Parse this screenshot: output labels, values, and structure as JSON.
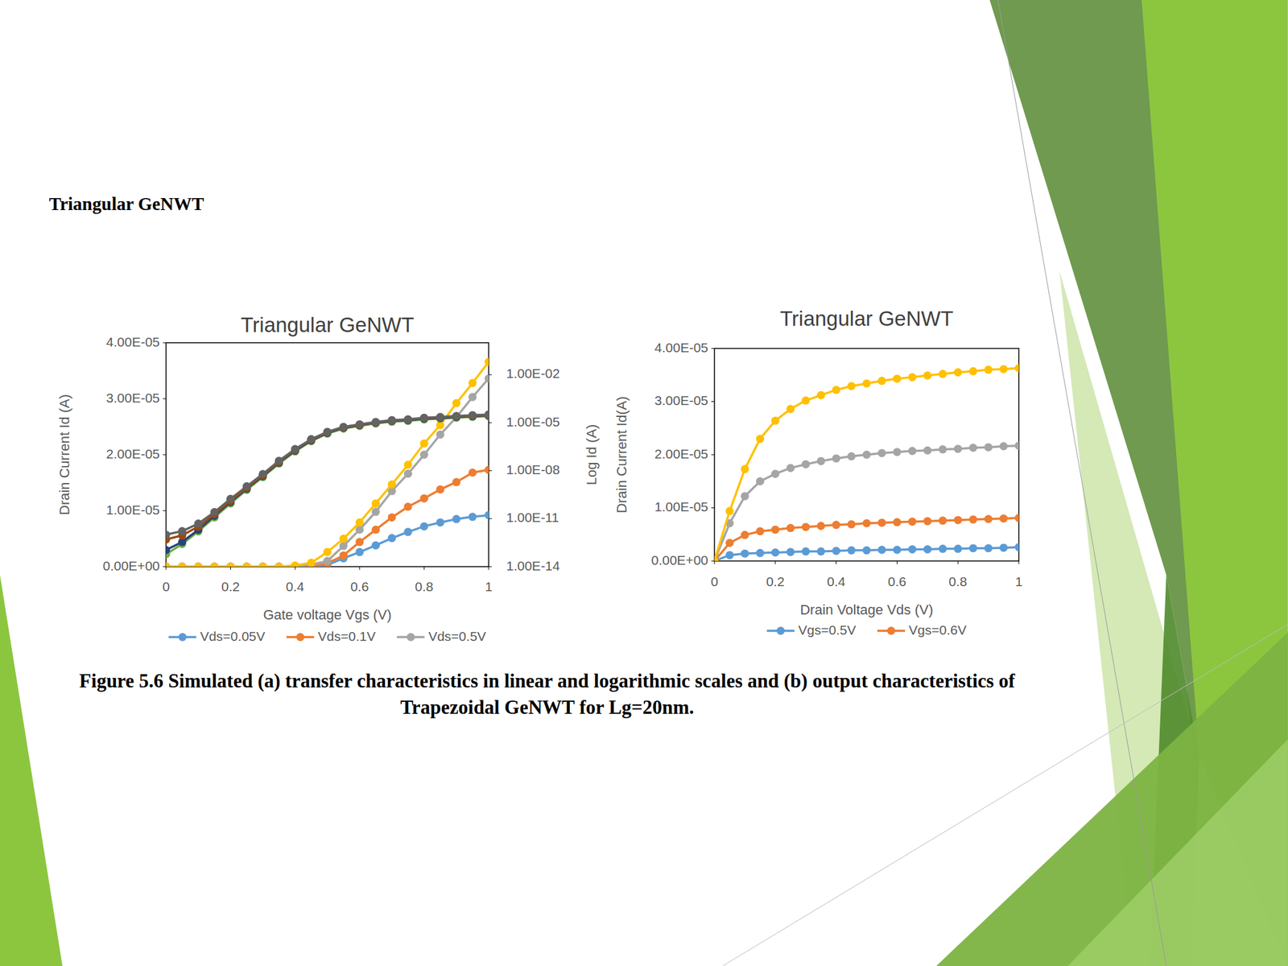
{
  "heading": "Triangular GeNWT",
  "caption": "Figure 5.6 Simulated (a) transfer characteristics in linear and logarithmic scales and (b) output characteristics of Trapezoidal GeNWT for Lg=20nm.",
  "chart_data": [
    {
      "type": "line",
      "title": "Triangular GeNWT",
      "xlabel": "Gate voltage Vgs (V)",
      "ylabel": "Drain Current Id (A)",
      "y2label": "Log Id (A)",
      "x": [
        0,
        0.05,
        0.1,
        0.15,
        0.2,
        0.25,
        0.3,
        0.35,
        0.4,
        0.45,
        0.5,
        0.55,
        0.6,
        0.65,
        0.7,
        0.75,
        0.8,
        0.85,
        0.9,
        0.95,
        1
      ],
      "xlim": [
        0,
        1
      ],
      "xticks": [
        0,
        0.2,
        0.4,
        0.6,
        0.8,
        1
      ],
      "ylim": [
        0,
        4e-05
      ],
      "yticks": [
        {
          "value": 0,
          "label": "0.00E+00"
        },
        {
          "value": 1e-05,
          "label": "1.00E-05"
        },
        {
          "value": 2e-05,
          "label": "2.00E-05"
        },
        {
          "value": 3e-05,
          "label": "3.00E-05"
        },
        {
          "value": 4e-05,
          "label": "4.00E-05"
        }
      ],
      "y2lim": [
        1e-14,
        1
      ],
      "y2ticks": [
        {
          "value": 1e-14,
          "label": "1.00E-14"
        },
        {
          "value": 1e-11,
          "label": "1.00E-11"
        },
        {
          "value": 1e-08,
          "label": "1.00E-08"
        },
        {
          "value": 1e-05,
          "label": "1.00E-05"
        },
        {
          "value": 0.01,
          "label": "1.00E-02"
        }
      ],
      "log": "y2",
      "grid": false,
      "legend": "bottom",
      "marker": "circle",
      "series": [
        {
          "name": "Vds=0.05V",
          "color": "#5b9bd5",
          "values": [
            0,
            0,
            0,
            0,
            0,
            0,
            0,
            0,
            0,
            0,
            3e-07,
            1.5e-06,
            2.6e-06,
            3.8e-06,
            5.1e-06,
            6.2e-06,
            7.2e-06,
            7.9e-06,
            8.5e-06,
            8.9e-06,
            9.2e-06
          ]
        },
        {
          "name": "Vds=0.1V",
          "color": "#ed7d31",
          "values": [
            0,
            0,
            0,
            0,
            0,
            0,
            0,
            0,
            0,
            0,
            6e-07,
            2e-06,
            4.4e-06,
            6.6e-06,
            8.8e-06,
            1.07e-05,
            1.22e-05,
            1.38e-05,
            1.51e-05,
            1.68e-05,
            1.73e-05
          ]
        },
        {
          "name": "Vds=0.5V",
          "color": "#a5a5a5",
          "values": [
            0,
            0,
            0,
            0,
            0,
            0,
            0,
            0,
            0,
            4e-07,
            1e-06,
            3.7e-06,
            6.6e-06,
            9.8e-06,
            1.35e-05,
            1.66e-05,
            2e-05,
            2.36e-05,
            2.67e-05,
            3.03e-05,
            3.36e-05
          ]
        },
        {
          "color": "#ffc000",
          "values": [
            0,
            0,
            0,
            0,
            0,
            0,
            0,
            0,
            2e-07,
            7e-07,
            2.6e-06,
            5e-06,
            7.9e-06,
            1.13e-05,
            1.47e-05,
            1.82e-05,
            2.2e-05,
            2.53e-05,
            2.92e-05,
            3.28e-05,
            3.66e-05
          ]
        },
        {
          "color": "#70ad47",
          "axis": "y2",
          "values": [
            6e-14,
            2.6e-13,
            1.6e-12,
            1.2e-11,
            9e-11,
            6.3e-10,
            4e-09,
            2.8e-08,
            1.6e-07,
            7e-07,
            2.1e-06,
            4.3e-06,
            6.3e-06,
            9e-06,
            1.15e-05,
            1.3e-05,
            1.6e-05,
            1.8e-05,
            2.05e-05,
            2.3e-05,
            2.55e-05
          ]
        },
        {
          "color": "#264478",
          "axis": "y2",
          "values": [
            1.1e-13,
            3.5e-13,
            2e-12,
            1.5e-11,
            1.1e-10,
            7.5e-10,
            4.6e-09,
            3.2e-08,
            1.8e-07,
            7.8e-07,
            2.3e-06,
            4.8e-06,
            7e-06,
            1e-05,
            1.3e-05,
            1.45e-05,
            1.8e-05,
            2e-05,
            2.3e-05,
            2.6e-05,
            2.9e-05
          ]
        },
        {
          "color": "#9e480e",
          "axis": "y2",
          "values": [
            5e-13,
            9e-13,
            3.2e-12,
            1.9e-11,
            1.3e-10,
            8.5e-10,
            5.2e-09,
            3.6e-08,
            2e-07,
            8.5e-07,
            2.5e-06,
            5.1e-06,
            7.4e-06,
            1.05e-05,
            1.38e-05,
            1.55e-05,
            1.95e-05,
            2.2e-05,
            2.5e-05,
            2.8e-05,
            3.1e-05
          ]
        },
        {
          "color": "#636363",
          "axis": "y2",
          "values": [
            1e-12,
            1.66e-12,
            4.9e-12,
            2.57e-11,
            1.74e-10,
            1.05e-09,
            6.17e-09,
            4.17e-08,
            2.24e-07,
            9.3e-07,
            2.69e-06,
            5.5e-06,
            7.94e-06,
            1.12e-05,
            1.45e-05,
            1.62e-05,
            2.04e-05,
            2.29e-05,
            2.63e-05,
            2.95e-05,
            3.31e-05
          ]
        }
      ]
    },
    {
      "type": "line",
      "title": "Triangular GeNWT",
      "xlabel": "Drain Voltage Vds (V)",
      "ylabel": "Drain Current Id(A)",
      "x": [
        0,
        0.05,
        0.1,
        0.15,
        0.2,
        0.25,
        0.3,
        0.35,
        0.4,
        0.45,
        0.5,
        0.55,
        0.6,
        0.65,
        0.7,
        0.75,
        0.8,
        0.85,
        0.9,
        0.95,
        1
      ],
      "xlim": [
        0,
        1
      ],
      "xticks": [
        0,
        0.2,
        0.4,
        0.6,
        0.8,
        1
      ],
      "ylim": [
        0,
        4e-05
      ],
      "yticks": [
        {
          "value": 0,
          "label": "0.00E+00"
        },
        {
          "value": 1e-05,
          "label": "1.00E-05"
        },
        {
          "value": 2e-05,
          "label": "2.00E-05"
        },
        {
          "value": 3e-05,
          "label": "3.00E-05"
        },
        {
          "value": 4e-05,
          "label": "4.00E-05"
        }
      ],
      "grid": false,
      "legend": "bottom",
      "marker": "circle",
      "series": [
        {
          "name": "Vgs=0.5V",
          "color": "#5b9bd5",
          "values": [
            0,
            1.1e-06,
            1.4e-06,
            1.5e-06,
            1.6e-06,
            1.7e-06,
            1.8e-06,
            1.8e-06,
            1.9e-06,
            2e-06,
            2e-06,
            2.1e-06,
            2.1e-06,
            2.2e-06,
            2.2e-06,
            2.3e-06,
            2.3e-06,
            2.4e-06,
            2.4e-06,
            2.5e-06,
            2.6e-06
          ]
        },
        {
          "name": "Vgs=0.6V",
          "color": "#ed7d31",
          "values": [
            0,
            3.4e-06,
            4.9e-06,
            5.6e-06,
            5.9e-06,
            6.2e-06,
            6.4e-06,
            6.6e-06,
            6.8e-06,
            6.9e-06,
            7.1e-06,
            7.2e-06,
            7.3e-06,
            7.4e-06,
            7.5e-06,
            7.6e-06,
            7.7e-06,
            7.8e-06,
            7.9e-06,
            8e-06,
            8.1e-06
          ]
        },
        {
          "color": "#a5a5a5",
          "values": [
            0,
            7.1e-06,
            1.22e-05,
            1.5e-05,
            1.64e-05,
            1.75e-05,
            1.82e-05,
            1.88e-05,
            1.93e-05,
            1.97e-05,
            2e-05,
            2.03e-05,
            2.05e-05,
            2.07e-05,
            2.08e-05,
            2.1e-05,
            2.11e-05,
            2.13e-05,
            2.14e-05,
            2.16e-05,
            2.17e-05
          ]
        },
        {
          "color": "#ffc000",
          "values": [
            0,
            9.4e-06,
            1.73e-05,
            2.3e-05,
            2.64e-05,
            2.86e-05,
            3.02e-05,
            3.12e-05,
            3.22e-05,
            3.29e-05,
            3.34e-05,
            3.39e-05,
            3.43e-05,
            3.46e-05,
            3.49e-05,
            3.52e-05,
            3.55e-05,
            3.57e-05,
            3.6e-05,
            3.61e-05,
            3.63e-05
          ]
        }
      ]
    }
  ]
}
